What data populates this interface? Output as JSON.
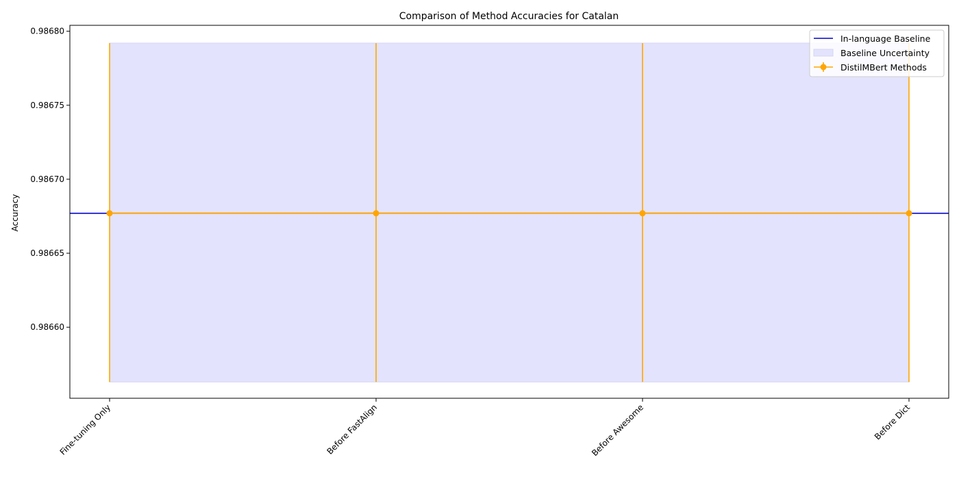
{
  "chart_data": {
    "type": "line",
    "title": "Comparison of Method Accuracies for Catalan",
    "xlabel": "",
    "ylabel": "Accuracy",
    "categories": [
      "Fine-tuning Only",
      "Before FastAlign",
      "Before Awesome",
      "Before Dict"
    ],
    "ylim": [
      0.986552,
      0.986804
    ],
    "yticks": [
      0.9866,
      0.98665,
      0.9867,
      0.98675,
      0.9868
    ],
    "ytick_labels": [
      "0.98660",
      "0.98665",
      "0.98670",
      "0.98675",
      "0.98680"
    ],
    "baseline": {
      "name": "In-language Baseline",
      "value": 0.986677,
      "color": "#0000cc"
    },
    "band": {
      "name": "Baseline Uncertainty",
      "lower": 0.986563,
      "upper": 0.986792,
      "color": "#e3e3fd"
    },
    "series": [
      {
        "name": "DistilMBert Methods",
        "values": [
          0.986677,
          0.986677,
          0.986677,
          0.986677
        ],
        "err_lower": [
          0.986563,
          0.986563,
          0.986563,
          0.986563
        ],
        "err_upper": [
          0.986792,
          0.986792,
          0.986792,
          0.986792
        ],
        "color": "#ffa500"
      }
    ],
    "grid": false,
    "legend_position": "top-right"
  }
}
